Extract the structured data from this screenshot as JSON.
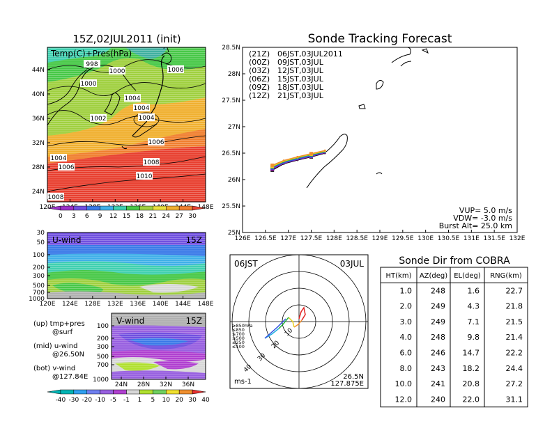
{
  "colors": {
    "temp_scale": [
      "#9b30c8",
      "#7050e0",
      "#3a7ae8",
      "#40b0e8",
      "#40d0b0",
      "#48c848",
      "#a0d040",
      "#e8e040",
      "#f0b030",
      "#f08030",
      "#e84030"
    ],
    "wind_scale": [
      "#00b4b4",
      "#30a0f0",
      "#7080f0",
      "#9860e0",
      "#b040d0",
      "#d8d8d8",
      "#b0e030",
      "#70d060",
      "#f0e030",
      "#f09030",
      "#e83030"
    ]
  },
  "map_panel": {
    "title": "15Z,02JUL2011 (init)",
    "label": "Temp(C)+Pres(hPa)",
    "lat_ticks": [
      "44N",
      "40N",
      "36N",
      "32N",
      "28N",
      "24N"
    ],
    "lon_ticks": [
      "120E",
      "124E",
      "128E",
      "132E",
      "136E",
      "140E",
      "144E",
      "148E"
    ],
    "isobars": [
      "998",
      "1000",
      "1006",
      "1000",
      "1004",
      "1002",
      "1004",
      "1004",
      "1006",
      "1004",
      "1008",
      "1006",
      "1010",
      "1008"
    ],
    "colorbar_labels": [
      "0",
      "3",
      "6",
      "9",
      "12",
      "15",
      "18",
      "21",
      "24",
      "27",
      "30"
    ]
  },
  "u_panel": {
    "label": "U-wind",
    "time": "15Z",
    "y_ticks": [
      "30",
      "50",
      "100",
      "200",
      "300",
      "500",
      "700",
      "1000"
    ],
    "x_ticks": [
      "120E",
      "124E",
      "128E",
      "132E",
      "136E",
      "140E",
      "144E",
      "148E"
    ]
  },
  "v_panel": {
    "label": "V-wind",
    "time": "15Z",
    "y_ticks": [
      "100",
      "200",
      "300",
      "500",
      "700",
      "1000"
    ],
    "x_ticks": [
      "24N",
      "28N",
      "32N",
      "36N"
    ],
    "colorbar_labels": [
      "-40",
      "-30",
      "-20",
      "-10",
      "-5",
      "-1",
      "1",
      "5",
      "10",
      "20",
      "30",
      "40"
    ]
  },
  "legend_text": {
    "up": "(up) tmp+pres",
    "up2": "@surf",
    "mid": "(mid) u-wind",
    "mid2": "@26.50N",
    "bot": "(bot) v-wind",
    "bot2": "@127.84E"
  },
  "track_panel": {
    "title": "Sonde Tracking Forecast",
    "lat_ticks": [
      "28.5N",
      "28N",
      "27.5N",
      "27N",
      "26.5N",
      "26N",
      "25.5N",
      "25N"
    ],
    "lon_ticks": [
      "126E",
      "126.5E",
      "127E",
      "127.5E",
      "128E",
      "128.5E",
      "129E",
      "129.5E",
      "130E",
      "130.5E",
      "131E",
      "131.5E",
      "132E"
    ],
    "launches": [
      {
        "tag": "(21Z)",
        "text": "06JST,03JUL2011",
        "color": "#000000"
      },
      {
        "tag": "(00Z)",
        "text": "09JST,03JUL",
        "color": "#a020c0"
      },
      {
        "tag": "(03Z)",
        "text": "12JST,03JUL",
        "color": "#3050e0"
      },
      {
        "tag": "(06Z)",
        "text": "15JST,03JUL",
        "color": "#20b040"
      },
      {
        "tag": "(09Z)",
        "text": "18JST,03JUL",
        "color": "#e8d020"
      },
      {
        "tag": "(12Z)",
        "text": "21JST,03JUL",
        "color": "#f09030"
      }
    ],
    "params": {
      "vup": "VUP= 5.0 m/s",
      "vdw": "VDW= -3.0 m/s",
      "burst": "Burst Alt= 25.0 km"
    }
  },
  "polar_panel": {
    "time": "06JST",
    "date": "03JUL",
    "unit": "ms-1",
    "lat": "26.5N",
    "lon": "127.875E",
    "ring_labels": [
      "10",
      "20",
      "30",
      "40"
    ],
    "level_legend": [
      {
        "text": "≥850hPa",
        "color": "#e02020"
      },
      {
        "text": "≤850",
        "color": "#f09030"
      },
      {
        "text": "≤700",
        "color": "#e8d020"
      },
      {
        "text": "≤500",
        "color": "#20b040"
      },
      {
        "text": "≤250",
        "color": "#20b0e0"
      },
      {
        "text": "≤100",
        "color": "#3050e0"
      }
    ]
  },
  "cobra_table": {
    "title": "Sonde Dir from COBRA",
    "headers": [
      "HT(km)",
      "AZ(deg)",
      "EL(deg)",
      "RNG(km)"
    ],
    "rows": [
      [
        "1.0",
        "248",
        "1.6",
        "22.7"
      ],
      [
        "2.0",
        "249",
        "4.3",
        "21.8"
      ],
      [
        "3.0",
        "249",
        "7.1",
        "21.5"
      ],
      [
        "4.0",
        "248",
        "9.8",
        "21.4"
      ],
      [
        "6.0",
        "246",
        "14.7",
        "22.2"
      ],
      [
        "8.0",
        "243",
        "18.2",
        "24.4"
      ],
      [
        "10.0",
        "241",
        "20.8",
        "27.2"
      ],
      [
        "12.0",
        "240",
        "22.0",
        "31.1"
      ]
    ]
  },
  "chart_data": [
    {
      "type": "heatmap",
      "title": "15Z,02JUL2011 (init)",
      "xlabel": "",
      "ylabel": "",
      "x_ticks": [
        "120E",
        "124E",
        "128E",
        "132E",
        "136E",
        "140E",
        "144E",
        "148E"
      ],
      "y_ticks": [
        "44N",
        "40N",
        "36N",
        "32N",
        "28N",
        "24N"
      ],
      "colorbar": [
        "0",
        "3",
        "6",
        "9",
        "12",
        "15",
        "18",
        "21",
        "24",
        "27",
        "30"
      ]
    },
    {
      "type": "line",
      "title": "Sonde Tracking Forecast",
      "xlim": [
        126,
        132
      ],
      "ylim": [
        25,
        28.5
      ],
      "series": [
        {
          "name": "06JST,03JUL2011",
          "x": [
            126.65,
            126.9,
            127.2,
            127.5,
            127.8
          ],
          "y": [
            26.18,
            26.3,
            26.37,
            26.43,
            26.5
          ]
        },
        {
          "name": "09JST,03JUL",
          "x": [
            126.65,
            126.9,
            127.2,
            127.5,
            127.8
          ],
          "y": [
            26.2,
            26.31,
            26.38,
            26.44,
            26.51
          ]
        },
        {
          "name": "12JST,03JUL",
          "x": [
            126.65,
            126.9,
            127.2,
            127.5,
            127.8
          ],
          "y": [
            26.22,
            26.32,
            26.39,
            26.45,
            26.52
          ]
        },
        {
          "name": "15JST,03JUL",
          "x": [
            126.65,
            126.9,
            127.2,
            127.5,
            127.8
          ],
          "y": [
            26.24,
            26.34,
            26.41,
            26.47,
            26.53
          ]
        },
        {
          "name": "18JST,03JUL",
          "x": [
            126.65,
            126.9,
            127.2,
            127.5,
            127.8
          ],
          "y": [
            26.25,
            26.35,
            26.42,
            26.48,
            26.54
          ]
        },
        {
          "name": "21JST,03JUL",
          "x": [
            126.65,
            126.9,
            127.2,
            127.5,
            127.8
          ],
          "y": [
            26.27,
            26.36,
            26.43,
            26.49,
            26.55
          ]
        }
      ]
    },
    {
      "type": "table",
      "title": "Sonde Dir from COBRA",
      "columns": [
        "HT(km)",
        "AZ(deg)",
        "EL(deg)",
        "RNG(km)"
      ],
      "rows": [
        [
          1.0,
          248,
          1.6,
          22.7
        ],
        [
          2.0,
          249,
          4.3,
          21.8
        ],
        [
          3.0,
          249,
          7.1,
          21.5
        ],
        [
          4.0,
          248,
          9.8,
          21.4
        ],
        [
          6.0,
          246,
          14.7,
          22.2
        ],
        [
          8.0,
          243,
          18.2,
          24.4
        ],
        [
          10.0,
          241,
          20.8,
          27.2
        ],
        [
          12.0,
          240,
          22.0,
          31.1
        ]
      ]
    }
  ]
}
